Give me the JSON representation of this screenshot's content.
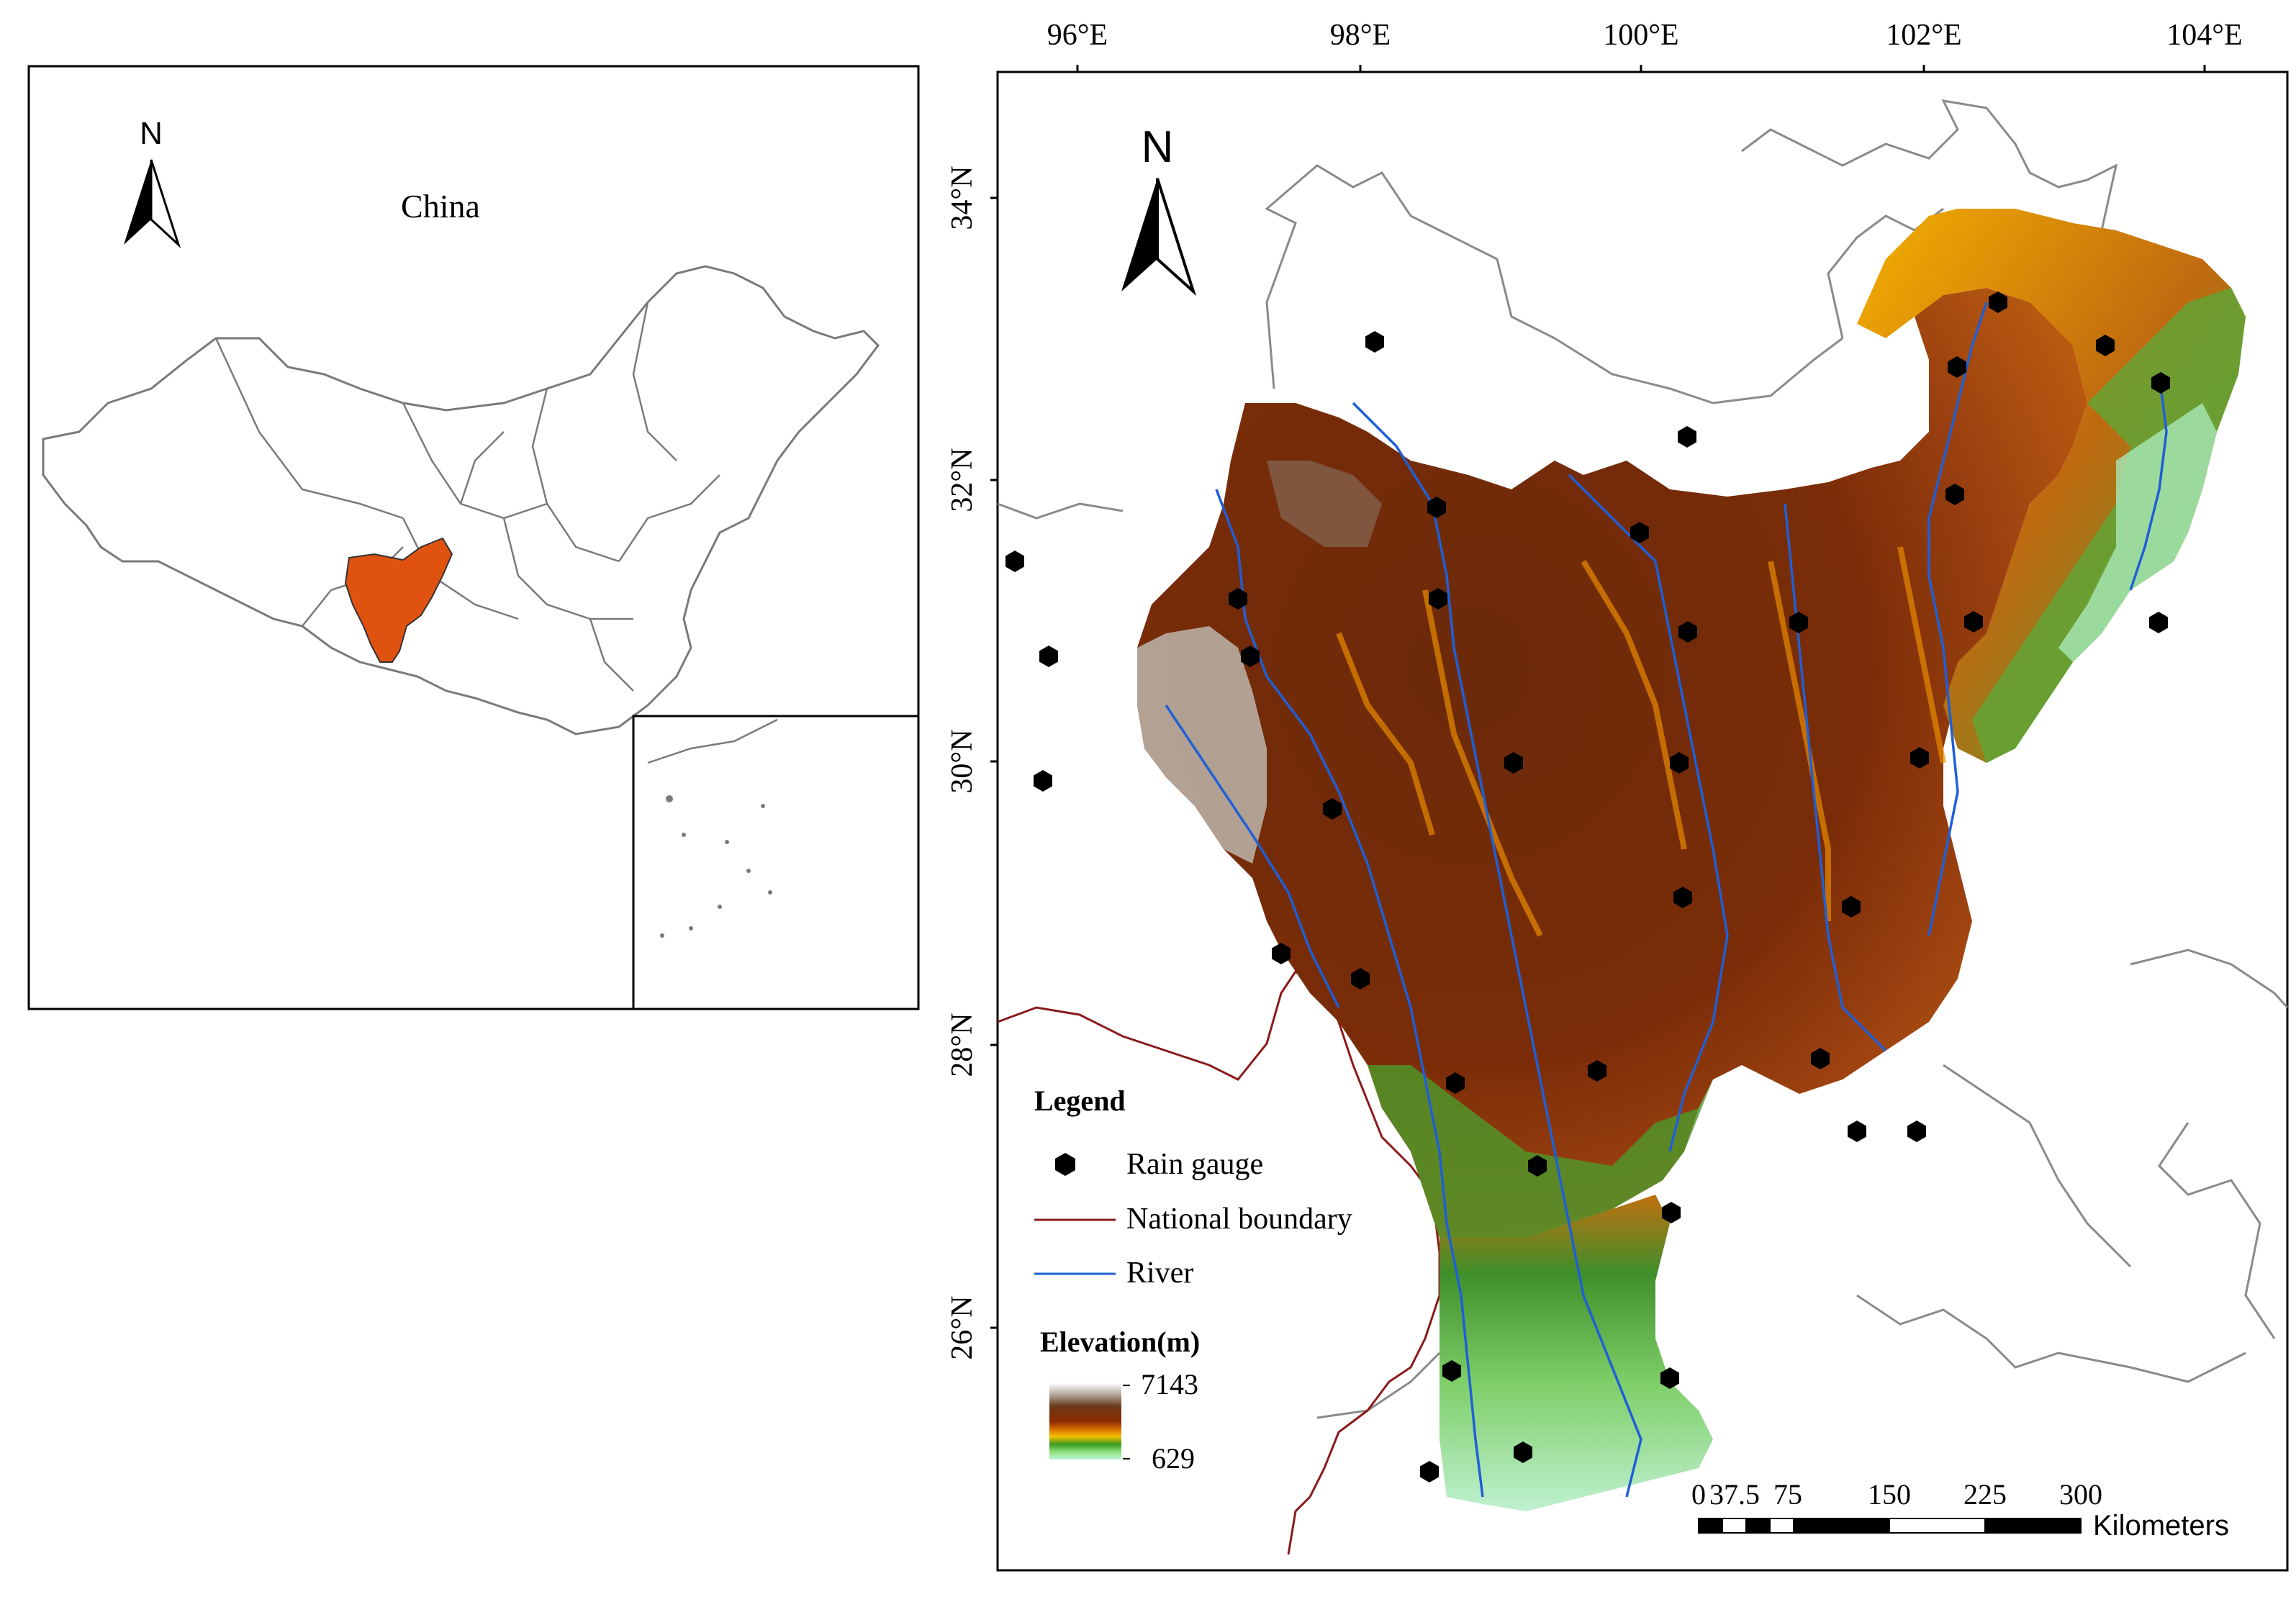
{
  "inset_map": {
    "country_label": "China",
    "north_label": "N"
  },
  "main_map": {
    "north_label": "N",
    "lon_ticks": [
      "96°E",
      "98°E",
      "100°E",
      "102°E",
      "104°E"
    ],
    "lat_ticks": [
      "34°N",
      "32°N",
      "30°N",
      "28°N",
      "26°N"
    ]
  },
  "legend": {
    "title": "Legend",
    "items": [
      {
        "label": "Rain gauge",
        "symbol": "hexagon",
        "color": "#000000"
      },
      {
        "label": "National boundary",
        "symbol": "line",
        "color": "#8b1a1a"
      },
      {
        "label": "River",
        "symbol": "line",
        "color": "#1f5fd6"
      }
    ],
    "elevation_title": "Elevation(m)",
    "elevation_max": "7143",
    "elevation_min": "629"
  },
  "scale_bar": {
    "labels": [
      "0",
      "37.5",
      "75",
      "150",
      "225",
      "300"
    ],
    "unit": "Kilometers"
  },
  "colors": {
    "study_area_inset": "#e0520f",
    "boundary_gray": "#7a7a7a",
    "national_boundary": "#8b1a1a",
    "river": "#1f5fd6"
  }
}
